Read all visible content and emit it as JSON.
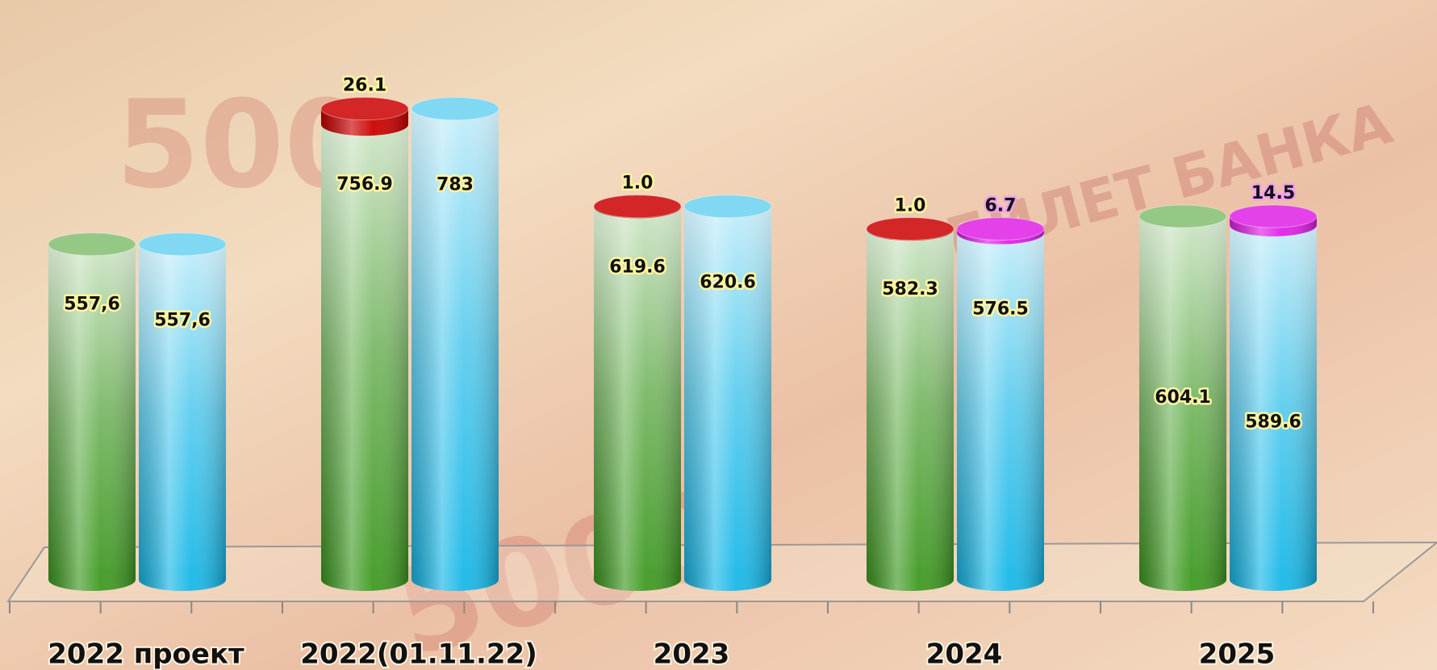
{
  "chart_data": {
    "type": "cylinder",
    "categories": [
      "2022 проект",
      "2022(01.11.22)",
      "2023",
      "2024",
      "2025"
    ],
    "series": [
      {
        "color": "#3f9a22",
        "values": [
          557.6,
          756.9,
          619.6,
          582.3,
          604.1
        ],
        "value_labels": [
          "557,6",
          "756.9",
          "619.6",
          "582.3",
          "604.1"
        ]
      },
      {
        "color": "#cc0000",
        "values": [
          null,
          26.1,
          1,
          1,
          null
        ],
        "value_labels": [
          null,
          "26.1",
          "1.0",
          "1.0",
          null
        ]
      },
      {
        "color": "#18b8e8",
        "values": [
          557.6,
          783,
          620.6,
          576.5,
          589.6
        ],
        "value_labels": [
          "557,6",
          "783",
          "620.6",
          "576.5",
          "589.6"
        ]
      },
      {
        "color": "#e020e8",
        "values": [
          null,
          null,
          null,
          6.7,
          14.5
        ],
        "value_labels": [
          null,
          null,
          null,
          "6.7",
          "14.5"
        ]
      }
    ]
  }
}
